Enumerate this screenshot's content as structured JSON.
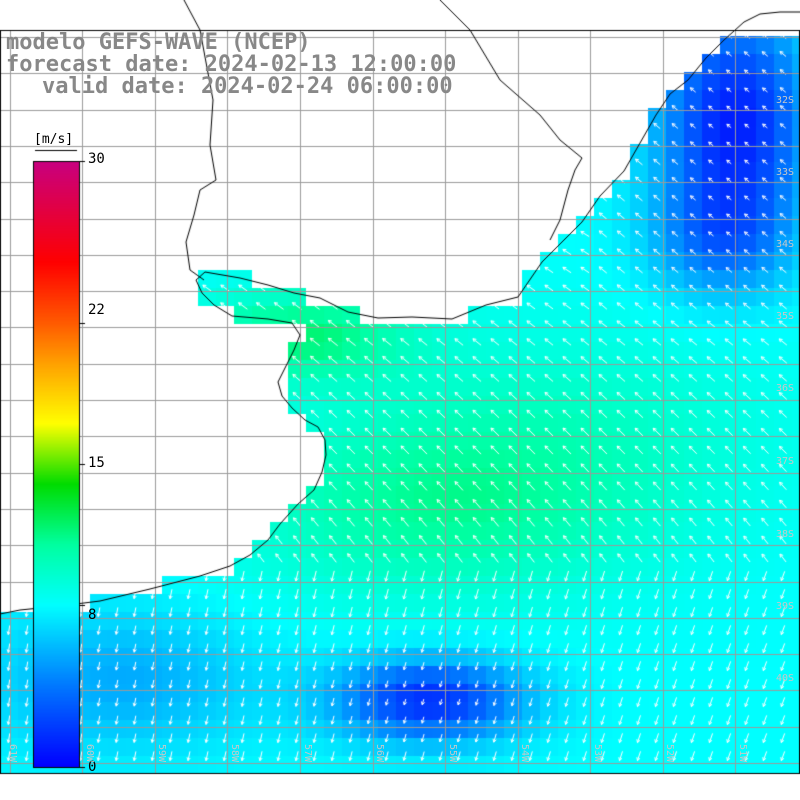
{
  "title": {
    "model": "modelo GEFS-WAVE (NCEP)",
    "forecast": "forecast date: 2024-02-13 12:00:00",
    "valid": "valid date: 2024-02-24 06:00:00"
  },
  "colorbar": {
    "unit": "[m/s]",
    "ticks": [
      "30",
      "22",
      "15",
      "8",
      "0"
    ]
  },
  "lat_labels": [
    "32S",
    "33S",
    "34S",
    "35S",
    "36S",
    "37S",
    "38S",
    "39S",
    "40S"
  ],
  "lon_labels": [
    "61W",
    "60W",
    "59W",
    "58W",
    "57W",
    "56W",
    "55W",
    "54W",
    "53W",
    "52W",
    "51W"
  ],
  "colors": {
    "land": "#ffffff",
    "grid": "#9a9a9a",
    "coast": "#000000",
    "arrows": "#ffffff",
    "title": "#888888"
  },
  "field": "wind speed and direction"
}
